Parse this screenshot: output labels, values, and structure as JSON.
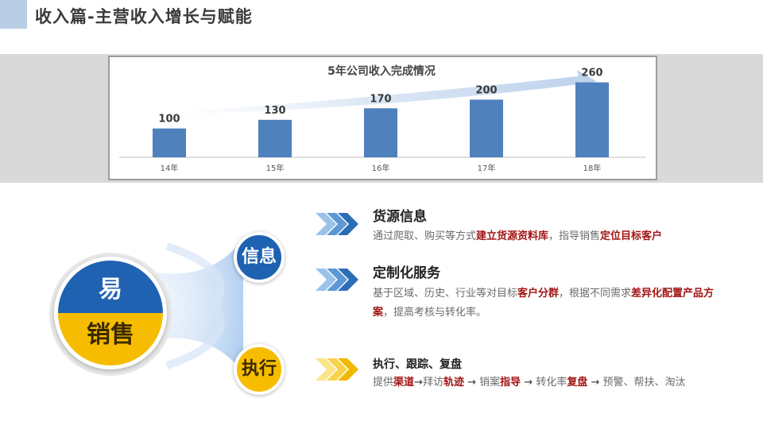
{
  "header": {
    "title": "收入篇-主营收入增长与赋能"
  },
  "chart_data": {
    "type": "bar",
    "title": "5年公司收入完成情况",
    "categories": [
      "14年",
      "15年",
      "16年",
      "17年",
      "18年"
    ],
    "values": [
      100,
      130,
      170,
      200,
      260
    ],
    "ylim": [
      0,
      270
    ],
    "bar_color": "#4f81bd"
  },
  "main_circle": {
    "top": "易",
    "bottom": "销售"
  },
  "info": {
    "circle_label": "信息",
    "item1": {
      "heading": "货源信息",
      "text1": "通过爬取、购买等方式",
      "hl1": "建立货源资料库",
      "text2": "，指导销售",
      "hl2": "定位目标客户"
    },
    "item2": {
      "heading": "定制化服务",
      "text1": "基于区域、历史、行业等对目标",
      "hl1": "客户分群",
      "text2": "，根据不同需求",
      "hl2": "差异化配置产品方案",
      "text3": "，提高考核与转化率。"
    }
  },
  "exec": {
    "circle_label": "执行",
    "heading": "执行、跟踪、复盘",
    "t1": "提供",
    "h1": "渠道",
    "a1": "→",
    "t2": "拜访",
    "h2": "轨迹",
    "a2": " → ",
    "t3": "销案",
    "h3": "指导",
    "a3": " → ",
    "t4": "转化率",
    "h4": "复盘",
    "a4": " → ",
    "t5": "预警、帮扶、淘汰"
  },
  "colors": {
    "blue": "#1f62b2",
    "yellow": "#f6bd00",
    "highlight": "#a31515"
  }
}
